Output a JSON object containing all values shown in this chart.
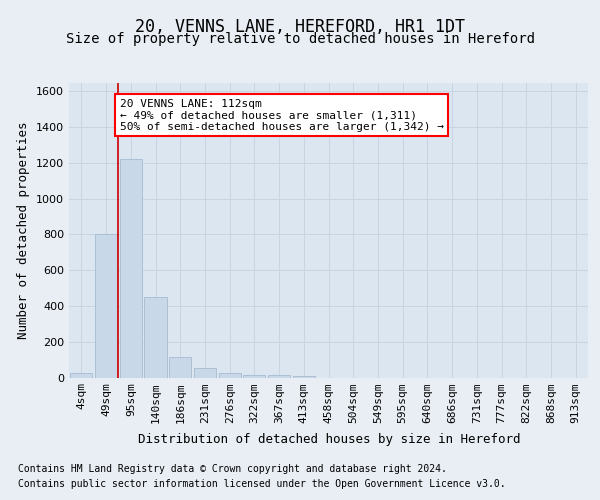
{
  "title": "20, VENNS LANE, HEREFORD, HR1 1DT",
  "subtitle": "Size of property relative to detached houses in Hereford",
  "xlabel": "Distribution of detached houses by size in Hereford",
  "ylabel": "Number of detached properties",
  "footer_line1": "Contains HM Land Registry data © Crown copyright and database right 2024.",
  "footer_line2": "Contains public sector information licensed under the Open Government Licence v3.0.",
  "annotation_line1": "20 VENNS LANE: 112sqm",
  "annotation_line2": "← 49% of detached houses are smaller (1,311)",
  "annotation_line3": "50% of semi-detached houses are larger (1,342) →",
  "bar_color": "#c8d8e8",
  "bar_edge_color": "#a8bcd0",
  "vline_color": "#cc0000",
  "vline_x": 1.5,
  "categories": [
    "4sqm",
    "49sqm",
    "95sqm",
    "140sqm",
    "186sqm",
    "231sqm",
    "276sqm",
    "322sqm",
    "367sqm",
    "413sqm",
    "458sqm",
    "504sqm",
    "549sqm",
    "595sqm",
    "640sqm",
    "686sqm",
    "731sqm",
    "777sqm",
    "822sqm",
    "868sqm",
    "913sqm"
  ],
  "values": [
    25,
    800,
    1220,
    450,
    115,
    55,
    25,
    15,
    15,
    10,
    0,
    0,
    0,
    0,
    0,
    0,
    0,
    0,
    0,
    0,
    0
  ],
  "ylim": [
    0,
    1650
  ],
  "yticks": [
    0,
    200,
    400,
    600,
    800,
    1000,
    1200,
    1400,
    1600
  ],
  "background_color": "#e8eef4",
  "plot_bg_color": "#dce6f0",
  "grid_color": "#c8d4e0",
  "title_fontsize": 12,
  "subtitle_fontsize": 10,
  "axis_label_fontsize": 9,
  "ylabel_fontsize": 9,
  "tick_fontsize": 8,
  "footer_fontsize": 7
}
